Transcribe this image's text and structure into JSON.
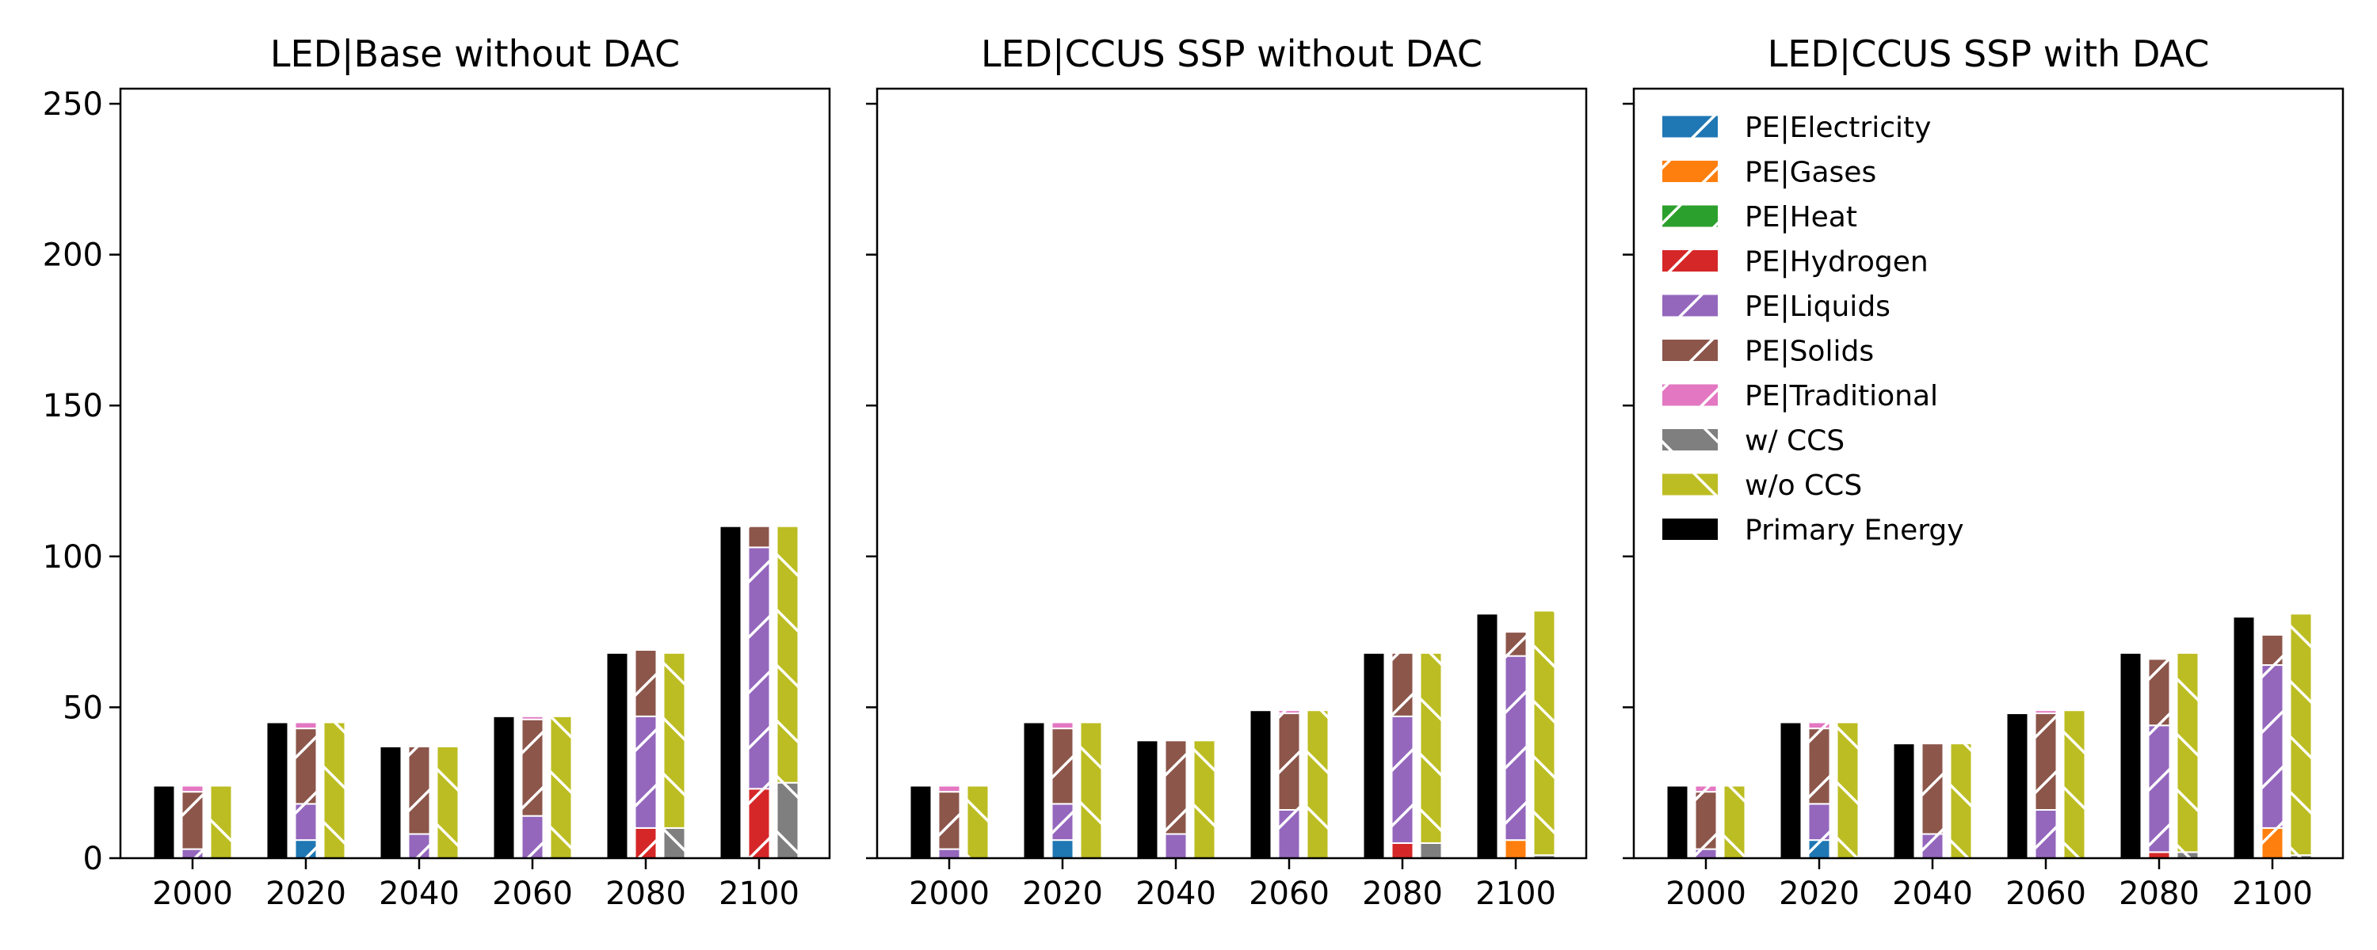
{
  "colors": {
    "PE|Electricity": "#1f77b4",
    "PE|Gases": "#ff7f0e",
    "PE|Heat": "#2ca02c",
    "PE|Hydrogen": "#d62728",
    "PE|Liquids": "#9467bd",
    "PE|Solids": "#8c564b",
    "PE|Traditional": "#e377c2",
    "w/ CCS": "#7f7f7f",
    "w/o CCS": "#bcbd22",
    "Primary Energy": "#000000"
  },
  "legend": {
    "items": [
      {
        "label": "PE|Electricity",
        "hatch": "/"
      },
      {
        "label": "PE|Gases",
        "hatch": "/"
      },
      {
        "label": "PE|Heat",
        "hatch": "/"
      },
      {
        "label": "PE|Hydrogen",
        "hatch": "/"
      },
      {
        "label": "PE|Liquids",
        "hatch": "/"
      },
      {
        "label": "PE|Solids",
        "hatch": "/"
      },
      {
        "label": "PE|Traditional",
        "hatch": "/"
      },
      {
        "label": "w/ CCS",
        "hatch": "\\"
      },
      {
        "label": "w/o CCS",
        "hatch": "\\"
      },
      {
        "label": "Primary Energy",
        "hatch": ""
      }
    ],
    "placement": "upper-left of third panel"
  },
  "chart_data": [
    {
      "type": "bar",
      "title": "LED|Base without DAC",
      "categories": [
        "2000",
        "2020",
        "2040",
        "2060",
        "2080",
        "2100"
      ],
      "ylim": [
        0,
        255
      ],
      "yticks": [
        0,
        50,
        100,
        150,
        200,
        250
      ],
      "stack_series": [
        {
          "name": "PE|Electricity",
          "values": [
            0,
            6,
            0,
            0,
            0,
            0
          ]
        },
        {
          "name": "PE|Gases",
          "values": [
            0,
            0,
            0,
            0,
            0,
            0
          ]
        },
        {
          "name": "PE|Heat",
          "values": [
            0,
            0,
            0,
            0,
            0,
            0
          ]
        },
        {
          "name": "PE|Hydrogen",
          "values": [
            0,
            0,
            0,
            0,
            10,
            23
          ]
        },
        {
          "name": "PE|Liquids",
          "values": [
            3,
            12,
            8,
            14,
            37,
            80
          ]
        },
        {
          "name": "PE|Solids",
          "values": [
            19,
            25,
            29,
            32,
            22,
            7
          ]
        },
        {
          "name": "PE|Traditional",
          "values": [
            2,
            2,
            0,
            1,
            0,
            0
          ]
        }
      ],
      "ccs_series": [
        {
          "name": "w/ CCS",
          "values": [
            0,
            0,
            0,
            0,
            10,
            25
          ]
        },
        {
          "name": "w/o CCS",
          "values": [
            24,
            45,
            37,
            47,
            58,
            85
          ]
        }
      ],
      "primary_energy": {
        "name": "Primary Energy",
        "values": [
          24,
          45,
          37,
          47,
          68,
          110
        ]
      }
    },
    {
      "type": "bar",
      "title": "LED|CCUS SSP without DAC",
      "categories": [
        "2000",
        "2020",
        "2040",
        "2060",
        "2080",
        "2100"
      ],
      "ylim": [
        0,
        255
      ],
      "yticks": [
        0,
        50,
        100,
        150,
        200,
        250
      ],
      "stack_series": [
        {
          "name": "PE|Electricity",
          "values": [
            0,
            6,
            0,
            0,
            0,
            0
          ]
        },
        {
          "name": "PE|Gases",
          "values": [
            0,
            0,
            0,
            0,
            0,
            6
          ]
        },
        {
          "name": "PE|Heat",
          "values": [
            0,
            0,
            0,
            0,
            0,
            0
          ]
        },
        {
          "name": "PE|Hydrogen",
          "values": [
            0,
            0,
            0,
            0,
            5,
            0
          ]
        },
        {
          "name": "PE|Liquids",
          "values": [
            3,
            12,
            8,
            16,
            42,
            61
          ]
        },
        {
          "name": "PE|Solids",
          "values": [
            19,
            25,
            31,
            32,
            21,
            8
          ]
        },
        {
          "name": "PE|Traditional",
          "values": [
            2,
            2,
            0,
            1,
            0,
            0
          ]
        }
      ],
      "ccs_series": [
        {
          "name": "w/ CCS",
          "values": [
            0,
            0,
            0,
            0,
            5,
            1
          ]
        },
        {
          "name": "w/o CCS",
          "values": [
            24,
            45,
            39,
            49,
            63,
            81
          ]
        }
      ],
      "primary_energy": {
        "name": "Primary Energy",
        "values": [
          24,
          45,
          39,
          49,
          68,
          81
        ]
      }
    },
    {
      "type": "bar",
      "title": "LED|CCUS SSP with DAC",
      "categories": [
        "2000",
        "2020",
        "2040",
        "2060",
        "2080",
        "2100"
      ],
      "ylim": [
        0,
        255
      ],
      "yticks": [
        0,
        50,
        100,
        150,
        200,
        250
      ],
      "stack_series": [
        {
          "name": "PE|Electricity",
          "values": [
            0,
            6,
            0,
            0,
            0,
            0
          ]
        },
        {
          "name": "PE|Gases",
          "values": [
            0,
            0,
            0,
            0,
            0,
            10
          ]
        },
        {
          "name": "PE|Heat",
          "values": [
            0,
            0,
            0,
            0,
            0,
            0
          ]
        },
        {
          "name": "PE|Hydrogen",
          "values": [
            0,
            0,
            0,
            0,
            2,
            0
          ]
        },
        {
          "name": "PE|Liquids",
          "values": [
            3,
            12,
            8,
            16,
            42,
            54
          ]
        },
        {
          "name": "PE|Solids",
          "values": [
            19,
            25,
            30,
            32,
            22,
            10
          ]
        },
        {
          "name": "PE|Traditional",
          "values": [
            2,
            2,
            0,
            1,
            0,
            0
          ]
        }
      ],
      "ccs_series": [
        {
          "name": "w/ CCS",
          "values": [
            0,
            0,
            0,
            0,
            2,
            1
          ]
        },
        {
          "name": "w/o CCS",
          "values": [
            24,
            45,
            38,
            49,
            66,
            80
          ]
        }
      ],
      "primary_energy": {
        "name": "Primary Energy",
        "values": [
          24,
          45,
          38,
          48,
          68,
          80
        ]
      }
    }
  ]
}
